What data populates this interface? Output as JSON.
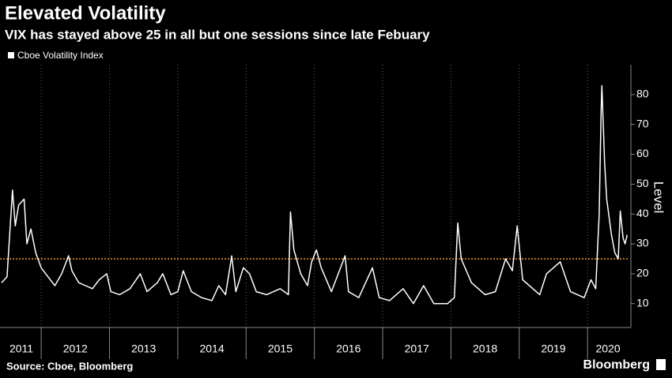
{
  "chart_data": {
    "type": "line",
    "title": "Elevated Volatility",
    "subtitle": "VIX has stayed above 25 in all but one sessions since late Febuary",
    "y_axis_label": "Level",
    "source": "Source: Cboe, Bloomberg",
    "brand": "Bloomberg",
    "x": [
      2011.42,
      2011.5,
      2011.58,
      2011.62,
      2011.67,
      2011.75,
      2011.79,
      2011.85,
      2011.92,
      2012.0,
      2012.1,
      2012.2,
      2012.3,
      2012.4,
      2012.45,
      2012.55,
      2012.65,
      2012.75,
      2012.85,
      2012.96,
      2013.02,
      2013.15,
      2013.3,
      2013.45,
      2013.55,
      2013.7,
      2013.78,
      2013.9,
      2014.0,
      2014.08,
      2014.2,
      2014.35,
      2014.5,
      2014.6,
      2014.7,
      2014.79,
      2014.85,
      2014.96,
      2015.05,
      2015.15,
      2015.3,
      2015.5,
      2015.62,
      2015.65,
      2015.7,
      2015.8,
      2015.9,
      2015.96,
      2016.03,
      2016.1,
      2016.25,
      2016.45,
      2016.5,
      2016.65,
      2016.85,
      2016.95,
      2017.1,
      2017.3,
      2017.45,
      2017.6,
      2017.75,
      2017.95,
      2018.05,
      2018.1,
      2018.15,
      2018.3,
      2018.5,
      2018.65,
      2018.8,
      2018.9,
      2018.97,
      2019.05,
      2019.3,
      2019.4,
      2019.6,
      2019.75,
      2019.95,
      2020.05,
      2020.12,
      2020.17,
      2020.2,
      2020.21,
      2020.25,
      2020.28,
      2020.35,
      2020.4,
      2020.45,
      2020.48,
      2020.52,
      2020.55,
      2020.58
    ],
    "series": [
      {
        "name": "Cboe Volatility Index",
        "color": "#ffffff",
        "values": [
          17,
          19,
          48,
          36,
          43,
          45,
          30,
          35,
          27,
          22,
          19,
          16,
          20,
          26,
          21,
          17,
          16,
          15,
          18,
          20,
          14,
          13,
          15,
          20,
          14,
          17,
          20,
          13,
          14,
          21,
          14,
          12,
          11,
          16,
          13,
          26,
          14,
          22,
          20,
          14,
          13,
          15,
          13,
          40.7,
          28,
          20,
          16,
          24,
          28,
          22,
          14,
          26,
          14,
          12,
          22,
          12,
          11,
          15,
          10,
          16,
          10,
          10,
          12,
          37,
          25,
          17,
          13,
          14,
          25,
          21,
          36,
          18,
          13,
          20,
          24,
          14,
          12,
          18,
          15,
          40,
          75,
          83,
          57,
          45,
          33,
          27,
          25,
          41,
          32,
          30,
          33
        ]
      }
    ],
    "xlim": [
      2011.42,
      2020.6
    ],
    "xticks": [
      2011,
      2012,
      2013,
      2014,
      2015,
      2016,
      2017,
      2018,
      2019,
      2020
    ],
    "ylim": [
      2,
      90
    ],
    "yticks": [
      10,
      20,
      30,
      40,
      50,
      60,
      70,
      80
    ],
    "reference_line": {
      "value": 25,
      "color": "#f0a030"
    },
    "grid": true
  }
}
